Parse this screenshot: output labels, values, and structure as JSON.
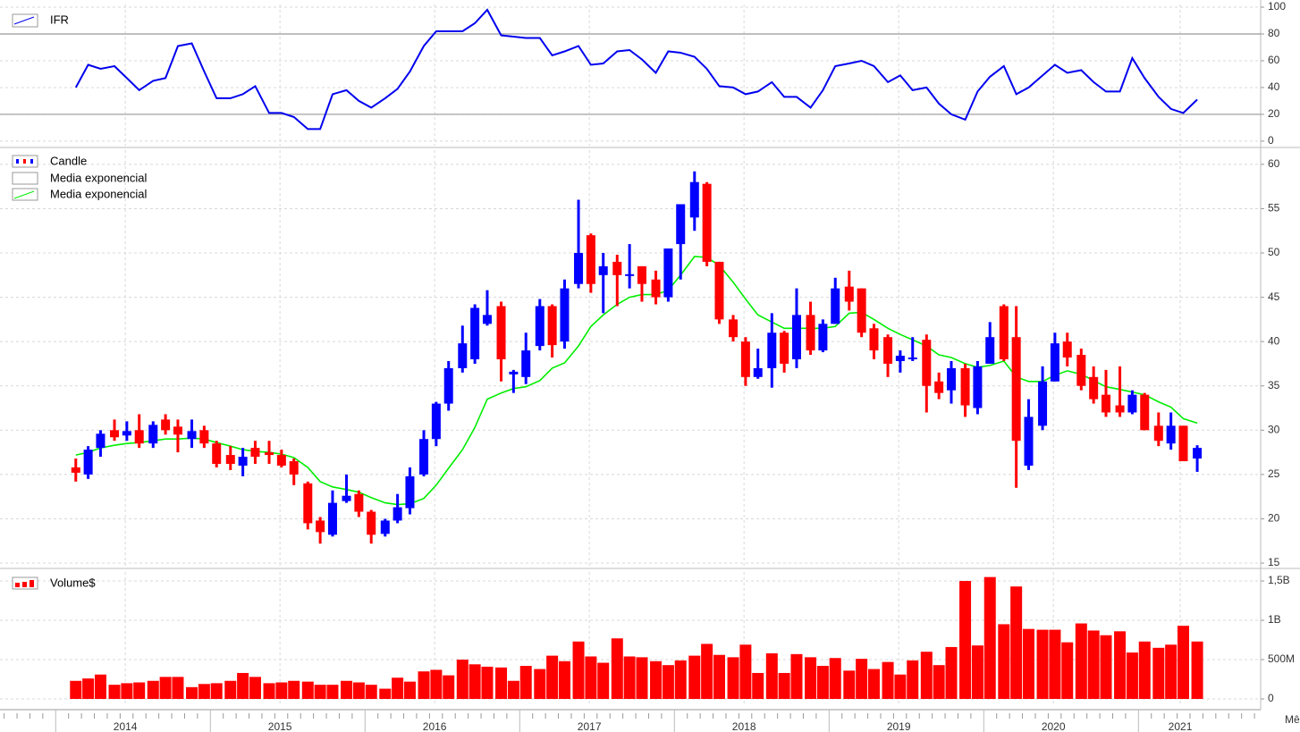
{
  "chart_data": [
    {
      "type": "line",
      "ylim": [
        -3.4,
        102
      ],
      "yticks": [
        0,
        20,
        40,
        60,
        80,
        100
      ],
      "reference_lines": [
        20,
        80
      ],
      "series": [
        {
          "name": "IFR",
          "color": "#0000ee",
          "values": [
            40,
            57,
            54,
            56,
            47,
            38,
            45,
            47,
            71,
            73,
            52,
            32,
            32,
            35,
            41,
            21,
            21,
            18,
            9,
            9,
            35,
            38,
            30,
            25,
            32,
            39,
            52,
            71,
            82,
            82,
            82,
            88,
            98,
            79,
            78,
            77,
            77,
            64,
            67,
            71,
            57,
            58,
            67,
            68,
            61,
            51,
            67,
            66,
            63,
            54,
            41,
            40,
            35,
            37,
            44,
            33,
            33,
            25,
            38,
            56,
            58,
            60,
            56,
            44,
            49,
            38,
            40,
            28,
            20,
            16,
            37,
            48,
            56,
            35,
            40,
            49,
            57,
            51,
            53,
            44,
            37,
            37,
            62,
            47,
            33,
            24,
            21,
            31
          ]
        }
      ]
    },
    {
      "type": "candlestick",
      "ylim": [
        14.6,
        61.6
      ],
      "yticks": [
        15,
        20,
        25,
        30,
        35,
        40,
        45,
        50,
        55,
        60
      ],
      "series": [
        {
          "name": "Candle",
          "up_color": "#0000ff",
          "down_color": "#ff0000",
          "open": [
            25.8,
            25,
            28,
            30,
            29.4,
            30,
            28.5,
            31.2,
            30.4,
            29,
            30,
            28.5,
            27.2,
            26,
            28,
            27.5,
            27.2,
            26.5,
            24,
            19.8,
            18.2,
            22,
            22.8,
            20.8,
            18.3,
            19.8,
            21.2,
            25,
            29,
            33,
            37,
            38,
            42,
            44,
            36.3,
            36,
            39.5,
            44,
            40,
            46.5,
            52,
            47.5,
            49,
            47.4,
            48.5,
            47,
            45,
            51,
            54,
            57.8,
            49,
            42.5,
            40,
            36,
            37,
            41,
            38,
            43,
            39,
            42,
            46.2,
            46,
            41.5,
            40.5,
            37.8,
            38,
            40.2,
            35.5,
            34.5,
            37,
            32.5,
            37.5,
            44,
            40.5,
            26,
            30.5,
            35.5,
            40,
            38.5,
            36,
            34,
            32.8,
            32,
            34,
            30.5,
            28.5,
            30.5,
            26.8
          ],
          "high": [
            26.8,
            28.2,
            30,
            31.2,
            31,
            31.8,
            31,
            31.8,
            31.2,
            31.2,
            30.5,
            28.8,
            28.2,
            28,
            28.8,
            28.8,
            27.8,
            26.8,
            24.2,
            20.2,
            23.2,
            25,
            23.2,
            21,
            20,
            22.8,
            25.8,
            30,
            33.2,
            37.8,
            41.8,
            44.2,
            45.8,
            44.5,
            36.8,
            41,
            44.8,
            44.2,
            47,
            56,
            52.2,
            50,
            49.8,
            51,
            48.5,
            48,
            50.5,
            55.5,
            59.2,
            58,
            49,
            43,
            40.5,
            39.2,
            43.2,
            41.2,
            46,
            44.5,
            42.5,
            47.2,
            48,
            46,
            42,
            40.8,
            39,
            40.5,
            40.8,
            36.5,
            37.8,
            37.5,
            37.8,
            42.2,
            44.2,
            44,
            33.5,
            37.2,
            41,
            41,
            39.2,
            37.2,
            36.8,
            37.2,
            34.5,
            34.2,
            32,
            32,
            30.5,
            28.3
          ],
          "low": [
            24.2,
            24.5,
            27,
            28.8,
            28.8,
            28,
            28,
            29.5,
            27.5,
            28,
            28,
            25.8,
            25.5,
            24.8,
            26.2,
            26.2,
            25.8,
            23.8,
            18.8,
            17.2,
            18,
            21.8,
            20.2,
            17.2,
            18,
            19.5,
            20.5,
            24.8,
            28.2,
            32.2,
            36.5,
            37.5,
            41.8,
            35.5,
            34.2,
            35.2,
            39,
            38.2,
            39.2,
            46,
            45.5,
            43.2,
            44,
            46,
            44.5,
            44.2,
            44.5,
            47,
            52.5,
            48.5,
            42,
            40,
            35,
            35.8,
            34.8,
            36.5,
            37,
            38.5,
            38.8,
            42,
            43.5,
            40.5,
            38,
            36,
            36.5,
            37.8,
            32,
            33.5,
            33,
            31.5,
            31.8,
            37.5,
            37.8,
            23.5,
            25.5,
            30,
            35.5,
            37.2,
            34.5,
            33,
            31.5,
            31.5,
            31.8,
            30,
            28.2,
            27.8,
            26.5,
            25.3
          ],
          "close": [
            25.2,
            27.8,
            29.6,
            29.2,
            29.9,
            28.5,
            30.6,
            30,
            29.5,
            29.9,
            28.5,
            26.2,
            26.2,
            27,
            27,
            27.2,
            26,
            25,
            19.5,
            18.5,
            21.8,
            22.6,
            20.8,
            18.2,
            19.8,
            21.3,
            24.8,
            29,
            33,
            37,
            39.8,
            43.8,
            43,
            38,
            36.6,
            39,
            44,
            39.6,
            46,
            50,
            46.5,
            48.5,
            47.5,
            47.6,
            46.5,
            45,
            50.5,
            55.5,
            58,
            49,
            42.5,
            40.5,
            36,
            37,
            41,
            37.5,
            43,
            39,
            42,
            46,
            44.5,
            41,
            39,
            37.5,
            38.4,
            38.2,
            35,
            34.2,
            37,
            32.8,
            37.2,
            40.5,
            38,
            28.8,
            31.5,
            35.5,
            39.8,
            38.2,
            35,
            33.5,
            32,
            32,
            34,
            30,
            28.8,
            30.5,
            26.5,
            28
          ]
        }
      ],
      "overlays": [
        {
          "name": "Media exponencial",
          "color": "#ffffff"
        },
        {
          "name": "Media exponencial",
          "color": "#00ee00",
          "values": [
            27.2,
            27.5,
            28,
            28.3,
            28.5,
            28.6,
            28.8,
            29,
            29,
            29.1,
            29,
            28.6,
            28.2,
            27.8,
            27.6,
            27.5,
            27.3,
            26.9,
            25.8,
            24.2,
            23.6,
            23.3,
            23,
            22.4,
            21.8,
            21.6,
            21.7,
            22.3,
            23.8,
            25.7,
            27.8,
            30.3,
            33.5,
            34.2,
            34.7,
            34.9,
            35.6,
            37,
            37.6,
            39.5,
            41.7,
            43,
            44.2,
            45,
            45.3,
            45.3,
            45.8,
            47.5,
            49.6,
            49.5,
            48.6,
            46.7,
            44.8,
            43,
            42.2,
            41.5,
            41.5,
            41.5,
            41.5,
            41.7,
            43.2,
            43.3,
            42.5,
            41.5,
            40.8,
            40.2,
            39.5,
            38.5,
            38.2,
            37.5,
            37.1,
            37.3,
            37.8,
            36,
            35.5,
            35.5,
            36.2,
            36.7,
            36.3,
            35.6,
            34.9,
            34.6,
            34.3,
            34,
            33.2,
            32.6,
            31.3,
            30.8
          ]
        }
      ]
    },
    {
      "type": "bar",
      "ylim": [
        -91000000,
        1614000000
      ],
      "yticks": [
        0,
        {
          "value": 500000000,
          "label": "500M"
        },
        {
          "value": 1000000000,
          "label": "1B"
        },
        {
          "value": 1500000000,
          "label": "1,5B"
        }
      ],
      "x_label": "Mês",
      "xlim": [
        2013.64,
        2021.79
      ],
      "xticks": [
        {
          "value": 2014.45,
          "label": "2014"
        },
        {
          "value": 2015.45,
          "label": "2015"
        },
        {
          "value": 2016.45,
          "label": "2016"
        },
        {
          "value": 2017.45,
          "label": "2017"
        },
        {
          "value": 2018.45,
          "label": "2018"
        },
        {
          "value": 2019.45,
          "label": "2019"
        },
        {
          "value": 2020.45,
          "label": "2020"
        },
        {
          "value": 2021.27,
          "label": "2021"
        }
      ],
      "x": [
        2014.13,
        2014.21,
        2014.29,
        2014.38,
        2014.46,
        2014.54,
        2014.63,
        2014.71,
        2014.79,
        2014.88,
        2014.96,
        2015.04,
        2015.13,
        2015.21,
        2015.29,
        2015.38,
        2015.46,
        2015.54,
        2015.63,
        2015.71,
        2015.79,
        2015.88,
        2015.96,
        2016.04,
        2016.13,
        2016.21,
        2016.29,
        2016.38,
        2016.46,
        2016.54,
        2016.63,
        2016.71,
        2016.79,
        2016.88,
        2016.96,
        2017.04,
        2017.13,
        2017.21,
        2017.29,
        2017.38,
        2017.46,
        2017.54,
        2017.63,
        2017.71,
        2017.79,
        2017.88,
        2017.96,
        2018.04,
        2018.13,
        2018.21,
        2018.29,
        2018.38,
        2018.46,
        2018.54,
        2018.63,
        2018.71,
        2018.79,
        2018.88,
        2018.96,
        2019.04,
        2019.13,
        2019.21,
        2019.29,
        2019.38,
        2019.46,
        2019.54,
        2019.63,
        2019.71,
        2019.79,
        2019.88,
        2019.96,
        2020.04,
        2020.13,
        2020.21,
        2020.29,
        2020.38,
        2020.46,
        2020.54,
        2020.63,
        2020.71,
        2020.79,
        2020.88,
        2020.96,
        2021.04,
        2021.13,
        2021.21,
        2021.29,
        2021.38
      ],
      "series": [
        {
          "name": "Volume$",
          "color": "#ff0000",
          "values": [
            230000000.0,
            260000000.0,
            310000000.0,
            180000000.0,
            200000000.0,
            210000000.0,
            230000000.0,
            280000000.0,
            280000000.0,
            150000000.0,
            190000000.0,
            200000000.0,
            230000000.0,
            330000000.0,
            280000000.0,
            200000000.0,
            210000000.0,
            230000000.0,
            220000000.0,
            180000000.0,
            180000000.0,
            230000000.0,
            210000000.0,
            180000000.0,
            130000000.0,
            270000000.0,
            220000000.0,
            350000000.0,
            370000000.0,
            300000000.0,
            500000000.0,
            440000000.0,
            410000000.0,
            400000000.0,
            230000000.0,
            420000000.0,
            380000000.0,
            550000000.0,
            480000000.0,
            730000000.0,
            540000000.0,
            460000000.0,
            770000000.0,
            540000000.0,
            530000000.0,
            480000000.0,
            430000000.0,
            490000000.0,
            550000000.0,
            700000000.0,
            560000000.0,
            530000000.0,
            690000000.0,
            330000000.0,
            580000000.0,
            330000000.0,
            570000000.0,
            530000000.0,
            420000000.0,
            520000000.0,
            360000000.0,
            510000000.0,
            380000000.0,
            470000000.0,
            310000000.0,
            490000000.0,
            600000000.0,
            430000000.0,
            660000000.0,
            1500000000.0,
            680000000.0,
            1550000000.0,
            950000000.0,
            1430000000.0,
            890000000.0,
            880000000.0,
            880000000.0,
            720000000.0,
            960000000.0,
            870000000.0,
            810000000.0,
            860000000.0,
            590000000.0,
            730000000.0,
            650000000.0,
            690000000.0,
            930000000.0,
            730000000.0
          ]
        }
      ]
    }
  ]
}
